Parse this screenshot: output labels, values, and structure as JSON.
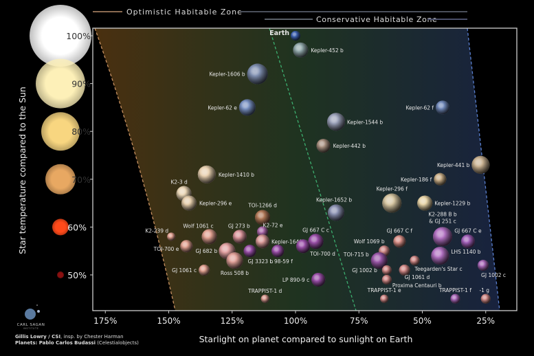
{
  "header": {
    "optimistic_zone": "Optimistic Habitable Zone",
    "conservative_zone": "Conservative Habitable Zone"
  },
  "credits": {
    "line1_bold": "Gillis Lowry / CSI",
    "line1_rest": ", insp. by Chester Harman",
    "line2_bold": "Planets: Pablo Carlos Budassi",
    "line2_rest": " (Celestialobjects)"
  },
  "logo": {
    "text": "CARL SAGAN",
    "subtext": "INSTITUTE"
  },
  "colors": {
    "optimistic_zone": "#c89060",
    "conservative_zone": "#3db070",
    "outer_boundary": "#5a80d0",
    "zone_hot": "#4a3010",
    "zone_mid": "#1f3320",
    "zone_cool": "#18223e"
  },
  "star_legend": [
    {
      "label": "100%",
      "color": "#ffffff"
    },
    {
      "label": "90%",
      "color": "#fdf0b8"
    },
    {
      "label": "80%",
      "color": "#f8d680"
    },
    {
      "label": "70%",
      "color": "#e8a862"
    },
    {
      "label": "60%",
      "color": "#ff4a1a"
    },
    {
      "label": "50%",
      "color": "#8a1010"
    }
  ],
  "chart_data": {
    "type": "scatter",
    "xlabel": "Starlight on planet compared to sunlight on Earth",
    "ylabel": "Star temperature compared to the Sun",
    "x_ticks": [
      "175%",
      "150%",
      "125%",
      "100%",
      "75%",
      "50%",
      "25%"
    ],
    "x_tick_values": [
      175,
      150,
      125,
      100,
      75,
      50,
      25
    ],
    "y_ticks": [
      "100%",
      "90%",
      "80%",
      "70%",
      "60%",
      "50%"
    ],
    "y_tick_values": [
      100,
      90,
      80,
      70,
      60,
      50
    ],
    "xlim": [
      180,
      15
    ],
    "ylim": [
      43.5,
      101.5
    ],
    "x_reversed": true,
    "grid": false,
    "points": [
      {
        "name": "Earth",
        "x": 100,
        "y": 100,
        "color": "#3f63b0"
      },
      {
        "name": "Kepler-452 b",
        "x": 98,
        "y": 97,
        "color": "#8fa6a8"
      },
      {
        "name": "Kepler-1606 b",
        "x": 115,
        "y": 92,
        "color": "#7f8fb0"
      },
      {
        "name": "Kepler-62 e",
        "x": 119,
        "y": 85,
        "color": "#7890c0"
      },
      {
        "name": "Kepler-1544 b",
        "x": 84,
        "y": 82,
        "color": "#9aa0b8"
      },
      {
        "name": "Kepler-442 b",
        "x": 89,
        "y": 77,
        "color": "#a89080"
      },
      {
        "name": "Kepler-62 f",
        "x": 42,
        "y": 85,
        "color": "#7088b8"
      },
      {
        "name": "Kepler-441 b",
        "x": 27,
        "y": 73,
        "color": "#c8b090"
      },
      {
        "name": "Kepler-186 f",
        "x": 43,
        "y": 70,
        "color": "#c8ae88"
      },
      {
        "name": "Kepler-1410 b",
        "x": 135,
        "y": 71,
        "color": "#e8d0b0"
      },
      {
        "name": "K2-3 d",
        "x": 144,
        "y": 67,
        "color": "#e8d4b4"
      },
      {
        "name": "Kepler-296 e",
        "x": 142,
        "y": 65,
        "color": "#e4ccaa"
      },
      {
        "name": "Kepler-1652 b",
        "x": 84,
        "y": 63,
        "color": "#8a90b0"
      },
      {
        "name": "Kepler-296 f",
        "x": 62,
        "y": 65,
        "color": "#d4c4a0"
      },
      {
        "name": "Kepler-1229 b",
        "x": 49,
        "y": 65,
        "color": "#e8d4a8"
      },
      {
        "name": "TOI-1266 d",
        "x": 113,
        "y": 62,
        "color": "#b07858"
      },
      {
        "name": "K2-239 d",
        "x": 149,
        "y": 58,
        "color": "#e0a090"
      },
      {
        "name": "Wolf 1061 c",
        "x": 134,
        "y": 58,
        "color": "#e0a090"
      },
      {
        "name": "GJ 273 b",
        "x": 122,
        "y": 58,
        "color": "#d8949a"
      },
      {
        "name": "K2-72 e",
        "x": 113,
        "y": 59,
        "color": "#a868a8"
      },
      {
        "name": "Kepler-1649 c",
        "x": 113,
        "y": 57,
        "color": "#d89a98"
      },
      {
        "name": "GJ 667 C c",
        "x": 92,
        "y": 57,
        "color": "#9a50a8"
      },
      {
        "name": "TOI-700 e",
        "x": 143,
        "y": 56,
        "color": "#e0a090"
      },
      {
        "name": "GJ 682 b",
        "x": 127,
        "y": 55,
        "color": "#e0a0a0"
      },
      {
        "name": "Ross 508 b",
        "x": 124,
        "y": 53,
        "color": "#e0a098"
      },
      {
        "name": "GJ 3323 b",
        "x": 118,
        "y": 55,
        "color": "#9a50a8"
      },
      {
        "name": "L 98-59 f",
        "x": 107,
        "y": 55,
        "color": "#9a50a8"
      },
      {
        "name": "TOI-700 d",
        "x": 97,
        "y": 56,
        "color": "#9a50a8"
      },
      {
        "name": "GJ 1061 c",
        "x": 136,
        "y": 51,
        "color": "#e0a090"
      },
      {
        "name": "LP 890-9 c",
        "x": 91,
        "y": 49,
        "color": "#9a50a8"
      },
      {
        "name": "TRAPPIST-1 d",
        "x": 112,
        "y": 45,
        "color": "#d89a90"
      },
      {
        "name": "GJ 667 C f",
        "x": 59,
        "y": 57,
        "color": "#d89088"
      },
      {
        "name": "K2-288 B b\n& GJ 251 c",
        "x": 42,
        "y": 58,
        "color": "#b070c0"
      },
      {
        "name": "GJ 667 C e",
        "x": 32,
        "y": 57,
        "color": "#a060b8"
      },
      {
        "name": "Wolf 1069 b",
        "x": 65,
        "y": 55,
        "color": "#d08a88"
      },
      {
        "name": "TOI-715 b",
        "x": 67,
        "y": 53,
        "color": "#9a58a8"
      },
      {
        "name": "LHS 1140 b",
        "x": 43,
        "y": 54,
        "color": "#b070c0"
      },
      {
        "name": "GJ 1002 b",
        "x": 64,
        "y": 51,
        "color": "#d08a88"
      },
      {
        "name": "Teegarden's Star c",
        "x": 53,
        "y": 53,
        "color": "#d08a88"
      },
      {
        "name": "GJ 1061 d",
        "x": 57,
        "y": 51,
        "color": "#d08a88"
      },
      {
        "name": "Proxima Centauri b",
        "x": 64,
        "y": 49,
        "color": "#d08a88"
      },
      {
        "name": "GJ 1002 c",
        "x": 26,
        "y": 52,
        "color": "#a868b8"
      },
      {
        "name": "TRAPPIST-1 e",
        "x": 65,
        "y": 45,
        "color": "#d08a88"
      },
      {
        "name": "TRAPPIST-1 f",
        "x": 37,
        "y": 45,
        "color": "#a868b8"
      },
      {
        "name": "-1 g",
        "x": 25,
        "y": 45,
        "color": "#d08a88"
      }
    ]
  }
}
